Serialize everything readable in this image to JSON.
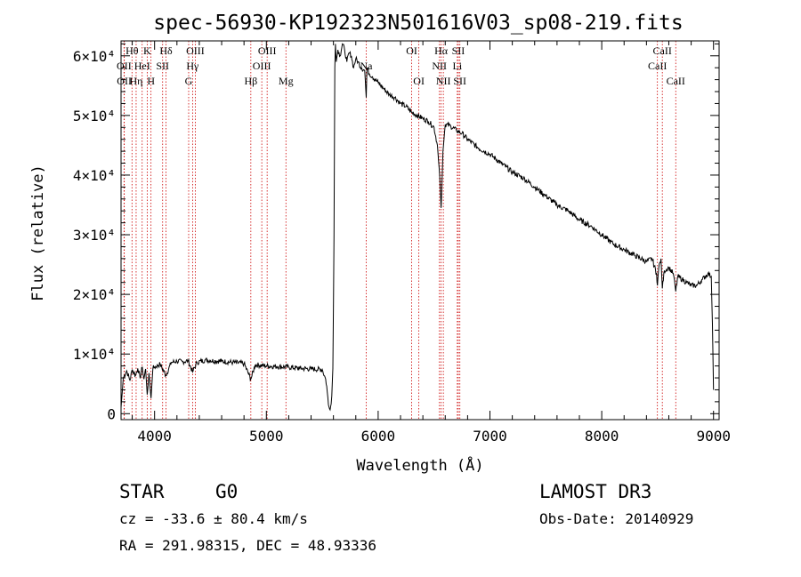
{
  "chart_data": {
    "type": "line",
    "title": "spec-56930-KP192323N501616V03_sp08-219.fits",
    "xlabel": "Wavelength (Å)",
    "ylabel": "Flux (relative)",
    "xlim": [
      3700,
      9050
    ],
    "ylim": [
      -1000,
      62500
    ],
    "x_ticks": [
      4000,
      5000,
      6000,
      7000,
      8000,
      9000
    ],
    "y_ticks": [
      {
        "value": 0,
        "label": "0"
      },
      {
        "value": 10000,
        "label": "1×10⁴"
      },
      {
        "value": 20000,
        "label": "2×10⁴"
      },
      {
        "value": 30000,
        "label": "3×10⁴"
      },
      {
        "value": 40000,
        "label": "4×10⁴"
      },
      {
        "value": 50000,
        "label": "5×10⁴"
      },
      {
        "value": 60000,
        "label": "6×10⁴"
      }
    ],
    "series": [
      {
        "name": "spectrum",
        "x": [
          3700,
          3720,
          3750,
          3780,
          3800,
          3830,
          3850,
          3870,
          3890,
          3905,
          3920,
          3934,
          3950,
          3968,
          3985,
          4000,
          4050,
          4101,
          4150,
          4200,
          4250,
          4300,
          4340,
          4380,
          4450,
          4500,
          4600,
          4700,
          4800,
          4861,
          4900,
          5000,
          5100,
          5200,
          5300,
          5400,
          5500,
          5530,
          5540,
          5555,
          5565,
          5575,
          5585,
          5595,
          5605,
          5612,
          5618,
          5625,
          5640,
          5660,
          5680,
          5700,
          5720,
          5740,
          5760,
          5780,
          5800,
          5820,
          5850,
          5880,
          5893,
          5900,
          5920,
          5950,
          6000,
          6050,
          6100,
          6150,
          6200,
          6250,
          6300,
          6350,
          6400,
          6450,
          6500,
          6530,
          6550,
          6560,
          6563,
          6566,
          6580,
          6600,
          6650,
          6700,
          6750,
          6800,
          6900,
          7000,
          7100,
          7200,
          7300,
          7400,
          7500,
          7600,
          7700,
          7800,
          7900,
          8000,
          8100,
          8200,
          8300,
          8400,
          8450,
          8490,
          8498,
          8510,
          8530,
          8542,
          8560,
          8600,
          8640,
          8662,
          8680,
          8720,
          8760,
          8800,
          8850,
          8900,
          8950,
          8980,
          8990,
          9000
        ],
        "y": [
          1000,
          6000,
          7200,
          5600,
          7400,
          6400,
          7600,
          6000,
          7800,
          5800,
          7500,
          3200,
          6800,
          2600,
          7600,
          7800,
          8300,
          6400,
          8600,
          8800,
          8700,
          8900,
          7000,
          8600,
          9000,
          8900,
          8800,
          8600,
          8400,
          5800,
          8200,
          8000,
          7900,
          7800,
          7600,
          7500,
          7400,
          5800,
          4600,
          1500,
          800,
          1200,
          3000,
          7600,
          30000,
          58000,
          62000,
          59000,
          61000,
          60000,
          62000,
          61000,
          59000,
          60500,
          60000,
          58000,
          59500,
          59000,
          58000,
          57500,
          53000,
          58000,
          57000,
          56500,
          55500,
          54500,
          53500,
          53000,
          52000,
          51500,
          50500,
          50000,
          49500,
          49000,
          48000,
          45000,
          40000,
          36000,
          34500,
          36000,
          44000,
          48500,
          48200,
          47500,
          47000,
          46000,
          44500,
          43500,
          42000,
          40500,
          39500,
          38000,
          36500,
          35000,
          34000,
          32500,
          31500,
          30000,
          28500,
          27500,
          26500,
          25500,
          26000,
          23500,
          21500,
          24500,
          26000,
          21000,
          24000,
          24500,
          23500,
          20500,
          23000,
          22500,
          22000,
          21500,
          21500,
          22500,
          23500,
          23000,
          15000,
          4000
        ]
      }
    ],
    "lines": [
      {
        "name": "Hθ",
        "wl": 3798,
        "row": 0
      },
      {
        "name": "OII",
        "wl": 3727,
        "row": 1
      },
      {
        "name": "OII",
        "wl": 3729,
        "row": 2
      },
      {
        "name": "Hη",
        "wl": 3835,
        "row": 2
      },
      {
        "name": "HeI",
        "wl": 3889,
        "row": 1
      },
      {
        "name": "K",
        "wl": 3934,
        "row": 0
      },
      {
        "name": "H",
        "wl": 3968,
        "row": 2
      },
      {
        "name": "SII",
        "wl": 4072,
        "row": 1
      },
      {
        "name": "Hδ",
        "wl": 4102,
        "row": 0
      },
      {
        "name": "OIII",
        "wl": 4364,
        "row": 0
      },
      {
        "name": "Hγ",
        "wl": 4340,
        "row": 1
      },
      {
        "name": "G",
        "wl": 4305,
        "row": 2
      },
      {
        "name": "Hβ",
        "wl": 4861,
        "row": 2
      },
      {
        "name": "OIII",
        "wl": 4959,
        "row": 1
      },
      {
        "name": "OIII",
        "wl": 5007,
        "row": 0
      },
      {
        "name": "Mg",
        "wl": 5175,
        "row": 2
      },
      {
        "name": "Na",
        "wl": 5893,
        "row": 1
      },
      {
        "name": "OI",
        "wl": 6300,
        "row": 0
      },
      {
        "name": "OI",
        "wl": 6364,
        "row": 2
      },
      {
        "name": "Hα",
        "wl": 6563,
        "row": 0
      },
      {
        "name": "NII",
        "wl": 6548,
        "row": 1
      },
      {
        "name": "NII",
        "wl": 6583,
        "row": 2
      },
      {
        "name": "SII",
        "wl": 6717,
        "row": 0
      },
      {
        "name": "Li",
        "wl": 6708,
        "row": 1
      },
      {
        "name": "SII",
        "wl": 6731,
        "row": 2
      },
      {
        "name": "CaII",
        "wl": 8542,
        "row": 0
      },
      {
        "name": "CaII",
        "wl": 8498,
        "row": 1
      },
      {
        "name": "CaII",
        "wl": 8662,
        "row": 2
      }
    ]
  },
  "info": {
    "object_class": "STAR",
    "subclass": "G0",
    "survey": "LAMOST DR3",
    "redshift": "cz = -33.6 ± 80.4 km/s",
    "obs_date": "Obs-Date: 20140929",
    "coords": "RA = 291.98315, DEC =  48.93336"
  },
  "colors": {
    "spectrum": "#000000",
    "line_marker": "#cc0000",
    "axes": "#000000"
  }
}
